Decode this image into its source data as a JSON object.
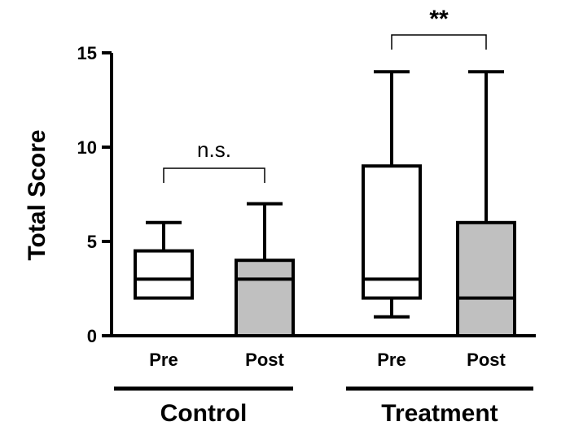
{
  "chart_data": {
    "type": "box",
    "ylabel": "Total Score",
    "ylim": [
      0,
      15
    ],
    "yticks": [
      0,
      5,
      10,
      15
    ],
    "yticks_labels": [
      "0",
      "5",
      "10",
      "15"
    ],
    "grid": false,
    "groups": [
      {
        "label": "Control",
        "boxes": [
          {
            "category": "Pre",
            "fill": "#ffffff",
            "min": 2,
            "q1": 2,
            "median": 3,
            "q3": 4.5,
            "max": 6
          },
          {
            "category": "Post",
            "fill": "#c0c0c0",
            "min": 0,
            "q1": 0,
            "median": 3,
            "q3": 4,
            "max": 7
          }
        ],
        "significance": "n.s."
      },
      {
        "label": "Treatment",
        "boxes": [
          {
            "category": "Pre",
            "fill": "#ffffff",
            "min": 1,
            "q1": 2,
            "median": 3,
            "q3": 9,
            "max": 14
          },
          {
            "category": "Post",
            "fill": "#c0c0c0",
            "min": 0,
            "q1": 0,
            "median": 2,
            "q3": 6,
            "max": 14
          }
        ],
        "significance": "**"
      }
    ]
  }
}
